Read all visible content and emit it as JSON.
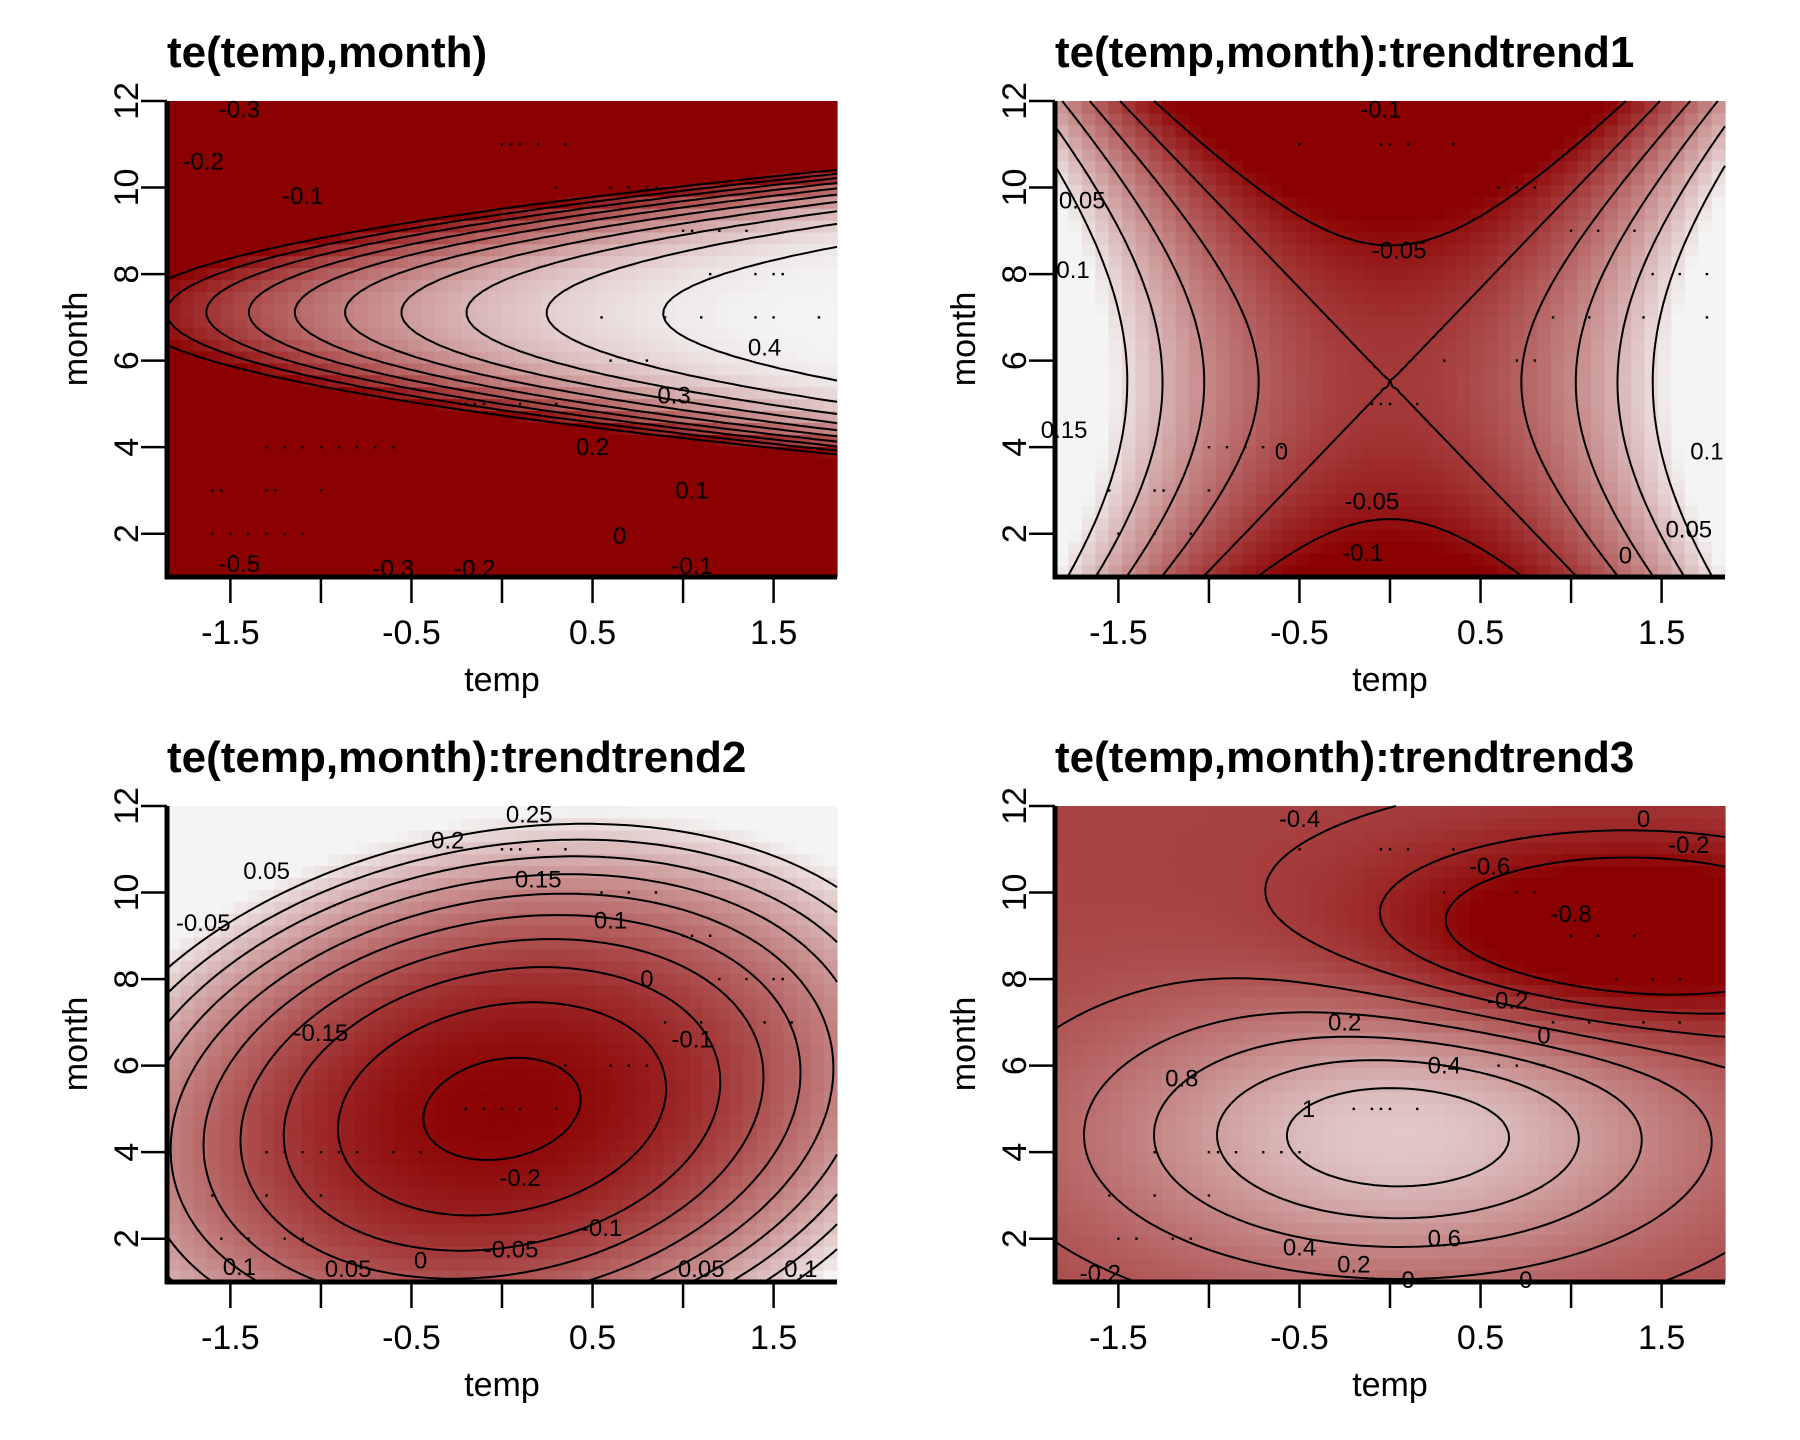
{
  "chart_data": [
    {
      "type": "heatmap",
      "title": "te(temp,month)",
      "xlabel": "temp",
      "ylabel": "month",
      "xlim": [
        -1.85,
        1.85
      ],
      "ylim": [
        1,
        12
      ],
      "xticks": [
        -1.5,
        -0.5,
        0.5,
        1.5
      ],
      "xminor": [
        -1,
        0,
        1
      ],
      "xticklabels": [
        "-1.5",
        "-0.5",
        "0.5",
        "1.5"
      ],
      "yticks": [
        2,
        4,
        6,
        8,
        10,
        12
      ],
      "yticklabels": [
        "2",
        "4",
        "6",
        "8",
        "10",
        "12"
      ],
      "colorscale": [
        "#8b0000",
        "#f4f4f4"
      ],
      "zrange": [
        -0.5,
        0.45
      ],
      "model": {
        "type": "quad",
        "x0": 1.8,
        "y0": 6.8,
        "vmax": 0.45,
        "a": 0.065,
        "b": 0.0088,
        "c": -0.03,
        "k": 0.35
      },
      "contour_levels": [
        -0.5,
        -0.4,
        -0.3,
        -0.2,
        -0.1,
        0,
        0.1,
        0.2,
        0.3,
        0.4
      ],
      "contour_labels": [
        {
          "text": "-0.3",
          "x": -1.45,
          "y": 11.8
        },
        {
          "text": "-0.2",
          "x": -1.65,
          "y": 10.6
        },
        {
          "text": "-0.1",
          "x": -1.1,
          "y": 9.8
        },
        {
          "text": "0.4",
          "x": 1.45,
          "y": 6.3
        },
        {
          "text": "0.3",
          "x": 0.95,
          "y": 5.2
        },
        {
          "text": "0.2",
          "x": 0.5,
          "y": 4.0
        },
        {
          "text": "0.1",
          "x": 1.05,
          "y": 3.0
        },
        {
          "text": "0",
          "x": 0.65,
          "y": 1.95
        },
        {
          "text": "-0.1",
          "x": 1.05,
          "y": 1.25
        },
        {
          "text": "-0.5",
          "x": -1.45,
          "y": 1.3
        },
        {
          "text": "-0.3",
          "x": -0.6,
          "y": 1.2
        },
        {
          "text": "-0.2",
          "x": -0.15,
          "y": 1.2
        }
      ],
      "data_points": [
        [
          -1.3,
          4
        ],
        [
          -1.2,
          4
        ],
        [
          -1.1,
          4
        ],
        [
          -1.0,
          4
        ],
        [
          -0.9,
          4
        ],
        [
          -0.8,
          4
        ],
        [
          -0.7,
          4
        ],
        [
          -0.6,
          4
        ],
        [
          -1.6,
          3
        ],
        [
          -1.55,
          3
        ],
        [
          -1.3,
          3
        ],
        [
          -1.25,
          3
        ],
        [
          -1.0,
          3
        ],
        [
          -1.6,
          2
        ],
        [
          -1.5,
          2
        ],
        [
          -1.4,
          2
        ],
        [
          -1.3,
          2
        ],
        [
          -1.2,
          2
        ],
        [
          -1.1,
          2
        ],
        [
          -0.2,
          5
        ],
        [
          -0.15,
          5
        ],
        [
          -0.1,
          5
        ],
        [
          0.1,
          5
        ],
        [
          0.3,
          5
        ],
        [
          0.6,
          6
        ],
        [
          0.7,
          6
        ],
        [
          0.8,
          6
        ],
        [
          0.0,
          11
        ],
        [
          0.05,
          11
        ],
        [
          0.1,
          11
        ],
        [
          0.2,
          11
        ],
        [
          0.35,
          11
        ],
        [
          0.3,
          10
        ],
        [
          0.6,
          10
        ],
        [
          0.7,
          10
        ],
        [
          0.8,
          10
        ],
        [
          0.85,
          10
        ],
        [
          1.0,
          9
        ],
        [
          1.05,
          9
        ],
        [
          1.2,
          9
        ],
        [
          1.35,
          9
        ],
        [
          1.15,
          8
        ],
        [
          1.4,
          8
        ],
        [
          1.5,
          8
        ],
        [
          1.55,
          8
        ],
        [
          0.55,
          7
        ],
        [
          0.9,
          7
        ],
        [
          1.1,
          7
        ],
        [
          1.4,
          7
        ],
        [
          1.5,
          7
        ],
        [
          1.75,
          7
        ]
      ]
    },
    {
      "type": "heatmap",
      "title": "te(temp,month):trendtrend1",
      "xlabel": "temp",
      "ylabel": "month",
      "xlim": [
        -1.85,
        1.85
      ],
      "ylim": [
        1,
        12
      ],
      "xticks": [
        -1.5,
        -0.5,
        0.5,
        1.5
      ],
      "xminor": [
        -1,
        0,
        1
      ],
      "xticklabels": [
        "-1.5",
        "-0.5",
        "0.5",
        "1.5"
      ],
      "yticks": [
        2,
        4,
        6,
        8,
        10,
        12
      ],
      "yticklabels": [
        "2",
        "4",
        "6",
        "8",
        "10",
        "12"
      ],
      "colorscale": [
        "#8b0000",
        "#f4f4f4"
      ],
      "zrange": [
        -0.12,
        0.18
      ],
      "model": {
        "type": "saddle",
        "x0": 0.0,
        "y0": 5.5,
        "p": 0.095,
        "q": 0.005
      },
      "contour_levels": [
        -0.1,
        -0.05,
        0,
        0.05,
        0.1,
        0.15
      ],
      "contour_labels": [
        {
          "text": "-0.1",
          "x": -0.05,
          "y": 11.8
        },
        {
          "text": "-0.05",
          "x": 0.05,
          "y": 8.55
        },
        {
          "text": "0.05",
          "x": -1.7,
          "y": 9.7
        },
        {
          "text": "0.1",
          "x": -1.75,
          "y": 8.1
        },
        {
          "text": "0.15",
          "x": -1.8,
          "y": 4.4
        },
        {
          "text": "0",
          "x": -0.6,
          "y": 3.9
        },
        {
          "text": "-0.05",
          "x": -0.1,
          "y": 2.75
        },
        {
          "text": "-0.1",
          "x": -0.15,
          "y": 1.55
        },
        {
          "text": "0.1",
          "x": 1.75,
          "y": 3.9
        },
        {
          "text": "0.05",
          "x": 1.65,
          "y": 2.1
        },
        {
          "text": "0",
          "x": 1.3,
          "y": 1.5
        }
      ],
      "data_points": [
        [
          -1.0,
          4
        ],
        [
          -0.9,
          4
        ],
        [
          -0.8,
          4
        ],
        [
          -0.7,
          4
        ],
        [
          -0.6,
          4
        ],
        [
          -1.55,
          3
        ],
        [
          -1.3,
          3
        ],
        [
          -1.25,
          3
        ],
        [
          -1.0,
          3
        ],
        [
          -1.5,
          2
        ],
        [
          -1.3,
          2
        ],
        [
          -1.1,
          2
        ],
        [
          -0.1,
          5
        ],
        [
          -0.05,
          5
        ],
        [
          0.0,
          5
        ],
        [
          0.15,
          5
        ],
        [
          0.3,
          6
        ],
        [
          0.7,
          6
        ],
        [
          0.8,
          6
        ],
        [
          -0.5,
          11
        ],
        [
          -0.05,
          11
        ],
        [
          0.0,
          11
        ],
        [
          0.1,
          11
        ],
        [
          0.35,
          11
        ],
        [
          0.6,
          10
        ],
        [
          0.7,
          10
        ],
        [
          0.8,
          10
        ],
        [
          1.0,
          9
        ],
        [
          1.15,
          9
        ],
        [
          1.35,
          9
        ],
        [
          1.45,
          8
        ],
        [
          1.6,
          8
        ],
        [
          1.75,
          8
        ],
        [
          0.9,
          7
        ],
        [
          1.1,
          7
        ],
        [
          1.4,
          7
        ],
        [
          1.75,
          7
        ]
      ]
    },
    {
      "type": "heatmap",
      "title": "te(temp,month):trendtrend2",
      "xlabel": "temp",
      "ylabel": "month",
      "xlim": [
        -1.85,
        1.85
      ],
      "ylim": [
        1,
        12
      ],
      "xticks": [
        -1.5,
        -0.5,
        0.5,
        1.5
      ],
      "xminor": [
        -1,
        0,
        1
      ],
      "xticklabels": [
        "-1.5",
        "-0.5",
        "0.5",
        "1.5"
      ],
      "yticks": [
        2,
        4,
        6,
        8,
        10,
        12
      ],
      "yticklabels": [
        "2",
        "4",
        "6",
        "8",
        "10",
        "12"
      ],
      "colorscale": [
        "#8b0000",
        "#f4f4f4"
      ],
      "zrange": [
        -0.22,
        0.3
      ],
      "model": {
        "type": "quad",
        "x0": 0.0,
        "y0": 5.0,
        "vmax": -0.215,
        "a": -0.082,
        "b": -0.0111,
        "c": -0.0113,
        "k": 0
      },
      "contour_levels": [
        -0.2,
        -0.15,
        -0.1,
        -0.05,
        0,
        0.05,
        0.1,
        0.15,
        0.2,
        0.25
      ],
      "contour_labels": [
        {
          "text": "0.25",
          "x": 0.15,
          "y": 11.8
        },
        {
          "text": "0.2",
          "x": -0.3,
          "y": 11.2
        },
        {
          "text": "0.15",
          "x": 0.2,
          "y": 10.3
        },
        {
          "text": "0.1",
          "x": 0.6,
          "y": 9.35
        },
        {
          "text": "0.05",
          "x": -1.3,
          "y": 10.5
        },
        {
          "text": "-0.05",
          "x": -1.65,
          "y": 9.3
        },
        {
          "text": "0",
          "x": 0.8,
          "y": 8.0
        },
        {
          "text": "-0.15",
          "x": -1.0,
          "y": 6.75
        },
        {
          "text": "-0.1",
          "x": 1.05,
          "y": 6.6
        },
        {
          "text": "-0.2",
          "x": 0.1,
          "y": 3.4
        },
        {
          "text": "-0.1",
          "x": 0.55,
          "y": 2.25
        },
        {
          "text": "-0.05",
          "x": 0.05,
          "y": 1.75
        },
        {
          "text": "0",
          "x": -0.45,
          "y": 1.5
        },
        {
          "text": "0.05",
          "x": -0.85,
          "y": 1.3
        },
        {
          "text": "0.1",
          "x": -1.45,
          "y": 1.35
        },
        {
          "text": "0.05",
          "x": 1.1,
          "y": 1.3
        },
        {
          "text": "0.1",
          "x": 1.65,
          "y": 1.3
        }
      ],
      "data_points": [
        [
          -1.3,
          4
        ],
        [
          -1.2,
          4
        ],
        [
          -1.1,
          4
        ],
        [
          -1.0,
          4
        ],
        [
          -0.9,
          4
        ],
        [
          -0.8,
          4
        ],
        [
          -0.6,
          4
        ],
        [
          -0.45,
          4
        ],
        [
          -1.6,
          3
        ],
        [
          -1.3,
          3
        ],
        [
          -1.0,
          3
        ],
        [
          -1.55,
          2
        ],
        [
          -1.4,
          2
        ],
        [
          -1.2,
          2
        ],
        [
          -1.1,
          2
        ],
        [
          -0.2,
          5
        ],
        [
          -0.1,
          5
        ],
        [
          0.0,
          5
        ],
        [
          0.1,
          5
        ],
        [
          0.3,
          5
        ],
        [
          0.35,
          6
        ],
        [
          0.6,
          6
        ],
        [
          0.7,
          6
        ],
        [
          0.8,
          6
        ],
        [
          0.0,
          11
        ],
        [
          0.05,
          11
        ],
        [
          0.1,
          11
        ],
        [
          0.2,
          11
        ],
        [
          0.35,
          11
        ],
        [
          0.55,
          10
        ],
        [
          0.7,
          10
        ],
        [
          0.85,
          10
        ],
        [
          1.0,
          9
        ],
        [
          1.05,
          9
        ],
        [
          1.15,
          9
        ],
        [
          1.2,
          8
        ],
        [
          1.35,
          8
        ],
        [
          1.5,
          8
        ],
        [
          1.55,
          8
        ],
        [
          0.9,
          7
        ],
        [
          1.1,
          7
        ],
        [
          1.45,
          7
        ],
        [
          1.6,
          7
        ]
      ]
    },
    {
      "type": "heatmap",
      "title": "te(temp,month):trendtrend3",
      "xlabel": "temp",
      "ylabel": "month",
      "xlim": [
        -1.85,
        1.85
      ],
      "ylim": [
        1,
        12
      ],
      "xticks": [
        -1.5,
        -0.5,
        0.5,
        1.5
      ],
      "xminor": [
        -1,
        0,
        1
      ],
      "xticklabels": [
        "-1.5",
        "-0.5",
        "0.5",
        "1.5"
      ],
      "yticks": [
        2,
        4,
        6,
        8,
        10,
        12
      ],
      "yticklabels": [
        "2",
        "4",
        "6",
        "8",
        "10",
        "12"
      ],
      "colorscale": [
        "#8b0000",
        "#f4f4f4"
      ],
      "zrange": [
        -0.9,
        1.1
      ],
      "model": {
        "type": "twogauss",
        "g1": {
          "x0": 0.05,
          "y0": 4.4,
          "amp": 1.1,
          "sx": 1.15,
          "sy": 2.2
        },
        "g2": {
          "x0": 1.3,
          "y0": 9.0,
          "amp": -0.95,
          "sx": 0.95,
          "sy": 1.5
        },
        "base": -0.35
      },
      "contour_levels": [
        -0.8,
        -0.6,
        -0.4,
        -0.2,
        0,
        0.2,
        0.4,
        0.6,
        0.8,
        1.0
      ],
      "contour_labels": [
        {
          "text": "-0.4",
          "x": -0.5,
          "y": 11.7
        },
        {
          "text": "-0.6",
          "x": 0.55,
          "y": 10.6
        },
        {
          "text": "-0.8",
          "x": 1.0,
          "y": 9.5
        },
        {
          "text": "0",
          "x": 1.4,
          "y": 11.7
        },
        {
          "text": "-0.2",
          "x": 1.65,
          "y": 11.1
        },
        {
          "text": "-0.2",
          "x": 0.65,
          "y": 7.5
        },
        {
          "text": "0",
          "x": 0.85,
          "y": 6.7
        },
        {
          "text": "0.2",
          "x": -0.25,
          "y": 7.0
        },
        {
          "text": "0.4",
          "x": 0.3,
          "y": 6.0
        },
        {
          "text": "0.8",
          "x": -1.15,
          "y": 5.7
        },
        {
          "text": "1",
          "x": -0.45,
          "y": 5.0
        },
        {
          "text": "0.6",
          "x": 0.3,
          "y": 2.0
        },
        {
          "text": "0.4",
          "x": -0.5,
          "y": 1.8
        },
        {
          "text": "0.2",
          "x": -0.2,
          "y": 1.4
        },
        {
          "text": "0",
          "x": 0.1,
          "y": 1.05
        },
        {
          "text": "-0.2",
          "x": -1.6,
          "y": 1.2
        },
        {
          "text": "0",
          "x": 0.75,
          "y": 1.05
        }
      ],
      "data_points": [
        [
          -1.3,
          4
        ],
        [
          -1.0,
          4
        ],
        [
          -0.95,
          4
        ],
        [
          -0.85,
          4
        ],
        [
          -0.7,
          4
        ],
        [
          -0.6,
          4
        ],
        [
          -0.5,
          4
        ],
        [
          -1.55,
          3
        ],
        [
          -1.3,
          3
        ],
        [
          -1.0,
          3
        ],
        [
          -1.5,
          2
        ],
        [
          -1.4,
          2
        ],
        [
          -1.2,
          2
        ],
        [
          -1.1,
          2
        ],
        [
          -0.2,
          5
        ],
        [
          -0.1,
          5
        ],
        [
          -0.05,
          5
        ],
        [
          0.0,
          5
        ],
        [
          0.15,
          5
        ],
        [
          0.3,
          6
        ],
        [
          0.6,
          6
        ],
        [
          0.7,
          6
        ],
        [
          0.85,
          6
        ],
        [
          -0.5,
          11
        ],
        [
          -0.05,
          11
        ],
        [
          0.0,
          11
        ],
        [
          0.1,
          11
        ],
        [
          0.35,
          11
        ],
        [
          0.3,
          10
        ],
        [
          0.7,
          10
        ],
        [
          0.8,
          10
        ],
        [
          1.0,
          9
        ],
        [
          1.15,
          9
        ],
        [
          1.35,
          9
        ],
        [
          1.25,
          8
        ],
        [
          1.45,
          8
        ],
        [
          1.6,
          8
        ],
        [
          0.9,
          7
        ],
        [
          1.1,
          7
        ],
        [
          1.4,
          7
        ],
        [
          1.6,
          7
        ]
      ]
    }
  ]
}
